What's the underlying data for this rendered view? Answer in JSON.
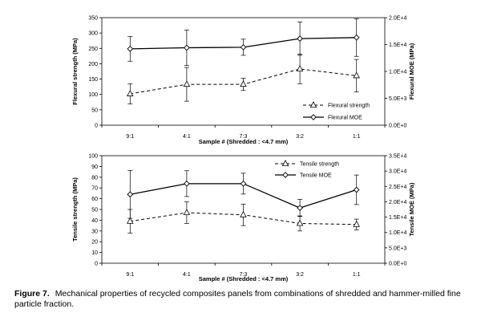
{
  "chart_data": [
    {
      "type": "line",
      "x_label": "Sample # (Shredded : <4.7 mm)",
      "categories": [
        "9:1",
        "4:1",
        "7:3",
        "3:2",
        "1:1"
      ],
      "left_axis": {
        "label": "Flexural strength (MPa)",
        "ylim": [
          0,
          350
        ],
        "ticks": [
          0,
          50,
          100,
          150,
          200,
          250,
          300,
          350
        ],
        "tick_labels": [
          "0",
          "50",
          "100",
          "150",
          "200",
          "250",
          "300",
          "350"
        ]
      },
      "right_axis": {
        "label": "Flexural MOE (MPa)",
        "ylim": [
          0,
          20000
        ],
        "ticks": [
          0,
          5000,
          10000,
          15000,
          20000
        ],
        "tick_labels": [
          "0.0E+0",
          "5.0E+3",
          "1.0E+4",
          "1.5E+4",
          "2.0E+4"
        ]
      },
      "series": [
        {
          "name": "Flexural strength",
          "axis": "left",
          "style": "dashed",
          "marker": "triangle",
          "values": [
            102,
            133,
            133,
            183,
            161
          ],
          "error": [
            33,
            55,
            20,
            48,
            53
          ]
        },
        {
          "name": "Flexural MOE",
          "axis": "right",
          "style": "solid",
          "marker": "diamond",
          "values": [
            14200,
            14400,
            14500,
            16100,
            16300
          ],
          "error": [
            2300,
            3300,
            1500,
            3100,
            3500
          ]
        }
      ],
      "legend_position": "right"
    },
    {
      "type": "line",
      "x_label": "Sample # (Shredded : <4.7 mm)",
      "categories": [
        "9:1",
        "4:1",
        "7:3",
        "3:2",
        "1:1"
      ],
      "left_axis": {
        "label": "Tensile strength (MPa)",
        "ylim": [
          0,
          100
        ],
        "ticks": [
          0,
          10,
          20,
          30,
          40,
          50,
          60,
          70,
          80,
          90,
          100
        ],
        "tick_labels": [
          "0",
          "10",
          "20",
          "30",
          "40",
          "50",
          "60",
          "70",
          "80",
          "90",
          "100"
        ]
      },
      "right_axis": {
        "label": "Tensile MOE (MPa)",
        "ylim": [
          0,
          35000
        ],
        "ticks": [
          0,
          5000,
          10000,
          15000,
          20000,
          25000,
          30000,
          35000
        ],
        "tick_labels": [
          "0.0E+0",
          "5.0E+3",
          "1.0E+4",
          "1.5E+4",
          "2.0E+4",
          "2.5E+4",
          "3.0E+4",
          "3.5E+4"
        ]
      },
      "series": [
        {
          "name": "Tensile strength",
          "axis": "left",
          "style": "dashed",
          "marker": "triangle",
          "values": [
            39,
            47,
            45,
            37,
            36
          ],
          "error": [
            11,
            10,
            10,
            7,
            5
          ]
        },
        {
          "name": "Tensile MOE",
          "axis": "right",
          "style": "solid",
          "marker": "diamond",
          "values": [
            22400,
            25900,
            25900,
            18000,
            23900
          ],
          "error": [
            7800,
            4200,
            3400,
            2800,
            4800
          ]
        }
      ],
      "legend_position": "top-right"
    }
  ],
  "caption": {
    "label": "Figure 7.",
    "text": "Mechanical properties of recycled composites panels from combinations of shredded and hammer-milled fine particle fraction."
  }
}
